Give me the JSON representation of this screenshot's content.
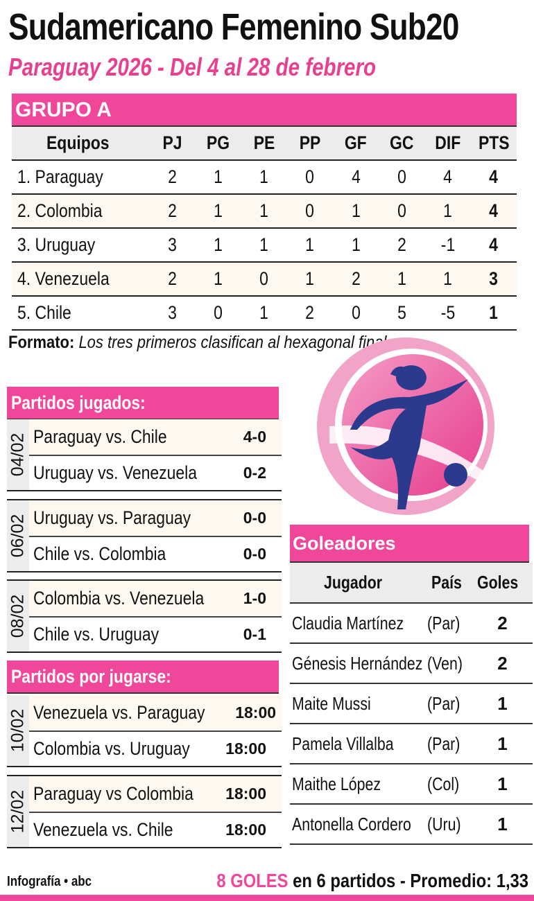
{
  "header": {
    "title": "Sudamericano Femenino Sub20",
    "subtitle": "Paraguay 2026  - Del 4 al 28 de febrero"
  },
  "group": {
    "title": "GRUPO A",
    "columns": [
      "Equipos",
      "PJ",
      "PG",
      "PE",
      "PP",
      "GF",
      "GC",
      "DIF",
      "PTS"
    ],
    "rows": [
      [
        "1.  Paraguay",
        "2",
        "1",
        "1",
        "0",
        "4",
        "0",
        "4",
        "4"
      ],
      [
        "2.  Colombia",
        "2",
        "1",
        "1",
        "0",
        "1",
        "0",
        "1",
        "4"
      ],
      [
        "3.  Uruguay",
        "3",
        "1",
        "1",
        "1",
        "1",
        "2",
        "-1",
        "4"
      ],
      [
        "4.  Venezuela",
        "2",
        "1",
        "0",
        "1",
        "2",
        "1",
        "1",
        "3"
      ],
      [
        "5.  Chile",
        "3",
        "0",
        "1",
        "2",
        "0",
        "5",
        "-5",
        "1"
      ]
    ]
  },
  "format": {
    "label": "Formato:",
    "text": " Los tres primeros clasifican al hexagonal final."
  },
  "played": {
    "title": "Partidos jugados:",
    "groups": [
      {
        "date": "04/02",
        "matches": [
          {
            "teams": "Paraguay vs. Chile",
            "result": "4-0"
          },
          {
            "teams": "Uruguay vs. Venezuela",
            "result": "0-2"
          }
        ]
      },
      {
        "date": "06/02",
        "matches": [
          {
            "teams": "Uruguay vs. Paraguay",
            "result": "0-0"
          },
          {
            "teams": "Chile vs. Colombia",
            "result": "0-0"
          }
        ]
      },
      {
        "date": "08/02",
        "matches": [
          {
            "teams": "Colombia vs. Venezuela",
            "result": "1-0"
          },
          {
            "teams": "Chile vs. Uruguay",
            "result": "0-1"
          }
        ]
      }
    ]
  },
  "upcoming": {
    "title": "Partidos por jugarse:",
    "groups": [
      {
        "date": "10/02",
        "matches": [
          {
            "teams": "Venezuela vs. Paraguay",
            "result": "18:00"
          },
          {
            "teams": "Colombia vs. Uruguay",
            "result": "18:00"
          }
        ]
      },
      {
        "date": "12/02",
        "matches": [
          {
            "teams": "Paraguay vs Colombia",
            "result": "18:00"
          },
          {
            "teams": "Venezuela vs. Chile",
            "result": "18:00"
          }
        ]
      }
    ]
  },
  "scorers": {
    "title": "Goleadores",
    "columns": [
      "Jugador",
      "País",
      "Goles"
    ],
    "rows": [
      [
        "Claudia Martínez",
        "(Par)",
        "2"
      ],
      [
        "Génesis Hernández",
        "(Ven)",
        "2"
      ],
      [
        "Maite Mussi",
        "(Par)",
        "1"
      ],
      [
        "Pamela Villalba",
        "(Par)",
        "1"
      ],
      [
        "Maithe López",
        "(Col)",
        "1"
      ],
      [
        "Antonella Cordero",
        "(Uru)",
        "1"
      ]
    ]
  },
  "footer": {
    "credit": "Infografía • abc",
    "goals": "8 GOLES",
    "stats": " en 6 partidos - Promedio: 1,33"
  },
  "logo": {
    "icon": "female-footballer-logo"
  },
  "colors": {
    "accent": "#f0479a",
    "subtitle": "#e8408f",
    "navy": "#2b3a8c",
    "header_gray": "#ececec"
  }
}
